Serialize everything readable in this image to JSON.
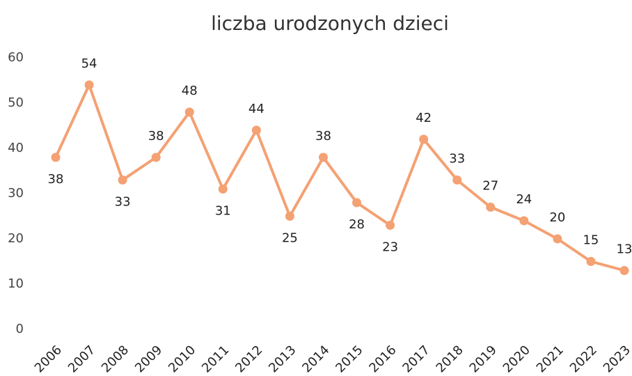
{
  "chart_data": {
    "type": "line",
    "title": "liczba urodzonych dzieci",
    "categories": [
      "2006",
      "2007",
      "2008",
      "2009",
      "2010",
      "2011",
      "2012",
      "2013",
      "2014",
      "2015",
      "2016",
      "2017",
      "2018",
      "2019",
      "2020",
      "2021",
      "2022",
      "2023"
    ],
    "values": [
      38,
      54,
      33,
      38,
      48,
      31,
      44,
      25,
      38,
      28,
      23,
      42,
      33,
      27,
      24,
      20,
      15,
      13
    ],
    "color": "#f4a173",
    "ylim": [
      0,
      60
    ],
    "yticks": [
      0,
      10,
      20,
      30,
      40,
      50,
      60
    ],
    "grid": false
  }
}
